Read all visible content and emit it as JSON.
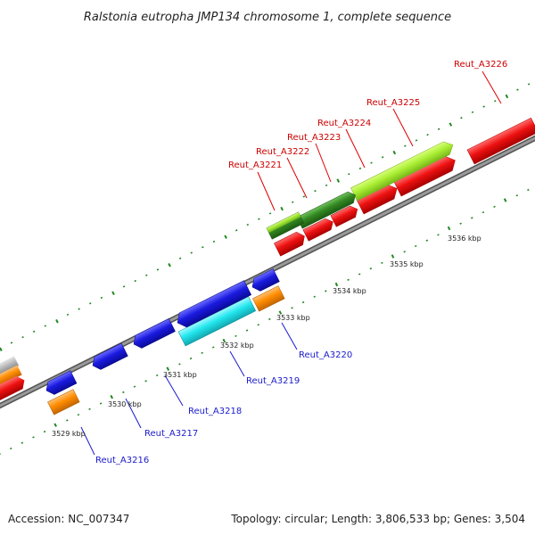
{
  "title": "Ralstonia eutropha JMP134 chromosome 1, complete sequence",
  "footer": {
    "accession": "Accession: NC_007347",
    "topology": "Topology: circular; Length: 3,806,533 bp; Genes: 3,504"
  },
  "scale_labels": [
    "3529 kbp",
    "3530 kbp",
    "3531 kbp",
    "3532 kbp",
    "3533 kbp",
    "3534 kbp",
    "3535 kbp",
    "3536 kbp"
  ],
  "gene_labels_top": [
    "Reut_A3221",
    "Reut_A3222",
    "Reut_A3223",
    "Reut_A3224",
    "Reut_A3225",
    "Reut_A3226"
  ],
  "gene_labels_bottom": [
    "Reut_A3216",
    "Reut_A3217",
    "Reut_A3218",
    "Reut_A3219",
    "Reut_A3220"
  ],
  "colors": {
    "forward_cds": "#ee1111",
    "reverse_cds": "#1a1ae0",
    "green_light": "#aaee33",
    "green_dark": "#338822",
    "cyan": "#22e6ee",
    "orange": "#ff8c00",
    "grey": "#bbbbbb",
    "backbone": "#888888",
    "tick": "#228822",
    "label_red": "#cc0000",
    "label_blue": "#1a1acc"
  }
}
